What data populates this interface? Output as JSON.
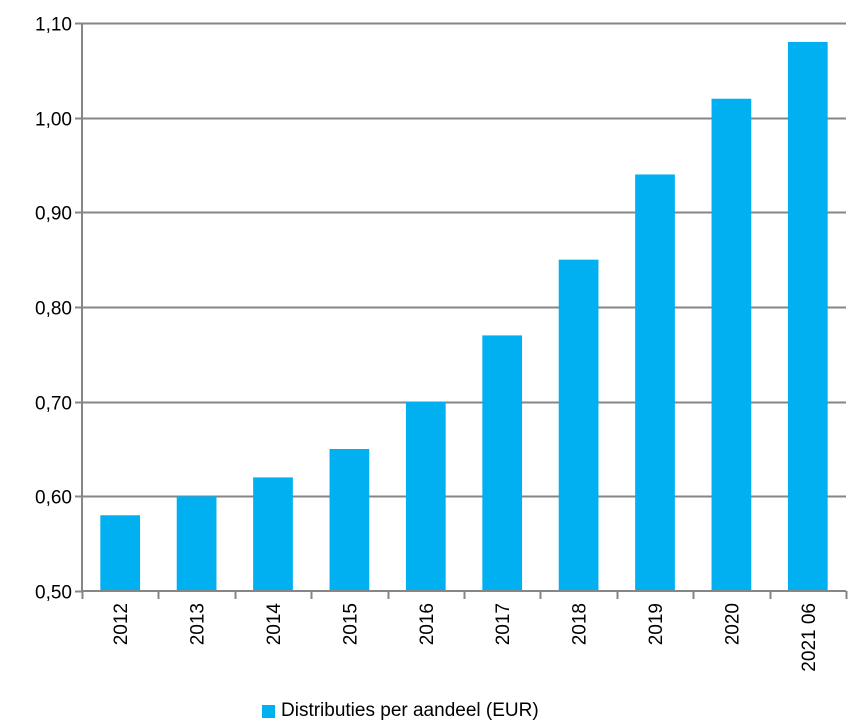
{
  "chart_data": {
    "type": "bar",
    "categories": [
      "2012",
      "2013",
      "2014",
      "2015",
      "2016",
      "2017",
      "2018",
      "2019",
      "2020",
      "2021 06"
    ],
    "series": [
      {
        "name": "Distributies per aandeel (EUR)",
        "values": [
          0.58,
          0.6,
          0.62,
          0.65,
          0.7,
          0.77,
          0.85,
          0.94,
          1.02,
          1.08
        ]
      }
    ],
    "y_ticks": [
      "0,50",
      "0,60",
      "0,70",
      "0,80",
      "0,90",
      "1,00",
      "1,10"
    ],
    "ylim": [
      0.5,
      1.1
    ],
    "grid": true,
    "legend_position": "bottom",
    "bar_color": "#00b0f0",
    "grid_color": "#868686"
  }
}
